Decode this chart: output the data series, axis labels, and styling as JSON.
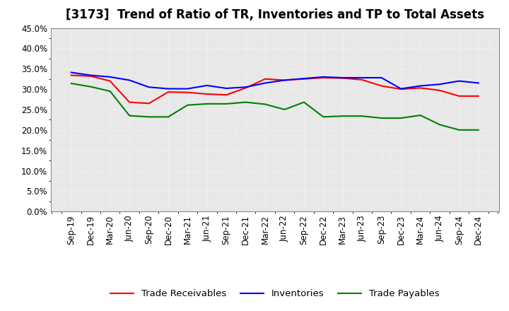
{
  "title": "[3173]  Trend of Ratio of TR, Inventories and TP to Total Assets",
  "labels": [
    "Sep-19",
    "Dec-19",
    "Mar-20",
    "Jun-20",
    "Sep-20",
    "Dec-20",
    "Mar-21",
    "Jun-21",
    "Sep-21",
    "Dec-21",
    "Mar-22",
    "Jun-22",
    "Sep-22",
    "Dec-22",
    "Mar-23",
    "Jun-23",
    "Sep-23",
    "Dec-23",
    "Mar-24",
    "Jun-24",
    "Sep-24",
    "Dec-24"
  ],
  "trade_receivables": [
    0.334,
    0.332,
    0.32,
    0.268,
    0.265,
    0.293,
    0.292,
    0.288,
    0.286,
    0.303,
    0.325,
    0.322,
    0.325,
    0.328,
    0.327,
    0.323,
    0.308,
    0.3,
    0.303,
    0.297,
    0.283,
    0.283
  ],
  "inventories": [
    0.341,
    0.334,
    0.33,
    0.322,
    0.305,
    0.301,
    0.301,
    0.309,
    0.302,
    0.305,
    0.315,
    0.322,
    0.326,
    0.33,
    0.328,
    0.328,
    0.328,
    0.301,
    0.308,
    0.312,
    0.32,
    0.315
  ],
  "trade_payables": [
    0.314,
    0.306,
    0.295,
    0.235,
    0.232,
    0.232,
    0.261,
    0.264,
    0.264,
    0.268,
    0.263,
    0.25,
    0.268,
    0.232,
    0.234,
    0.234,
    0.229,
    0.229,
    0.236,
    0.213,
    0.2,
    0.2
  ],
  "tr_color": "#ff0000",
  "inv_color": "#0000ff",
  "tp_color": "#008000",
  "ylim": [
    0.0,
    0.45
  ],
  "yticks": [
    0.0,
    0.05,
    0.1,
    0.15,
    0.2,
    0.25,
    0.3,
    0.35,
    0.4,
    0.45
  ],
  "bg_color": "#ffffff",
  "plot_bg_color": "#e8e8e8",
  "grid_color": "#ffffff",
  "legend_labels": [
    "Trade Receivables",
    "Inventories",
    "Trade Payables"
  ],
  "linewidth": 1.5,
  "title_fontsize": 12,
  "tick_fontsize": 8.5,
  "legend_fontsize": 9.5
}
